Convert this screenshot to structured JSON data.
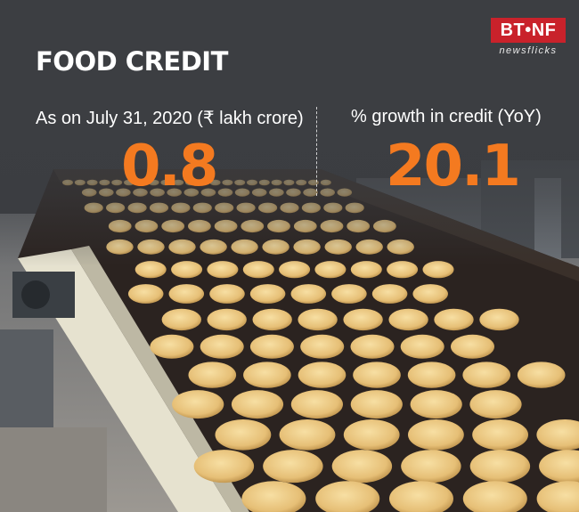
{
  "title": "FOOD CREDIT",
  "stats": [
    {
      "label": "As on July 31, 2020  (₹ lakh crore)",
      "value": "0.8"
    },
    {
      "label": "% growth in credit (YoY)",
      "value": "20.1"
    }
  ],
  "logo": {
    "mark": "BT•NF",
    "sub": "newsflicks"
  },
  "colors": {
    "accent": "#f47a20",
    "background": "#3c3e42",
    "brand": "#c9222b"
  }
}
